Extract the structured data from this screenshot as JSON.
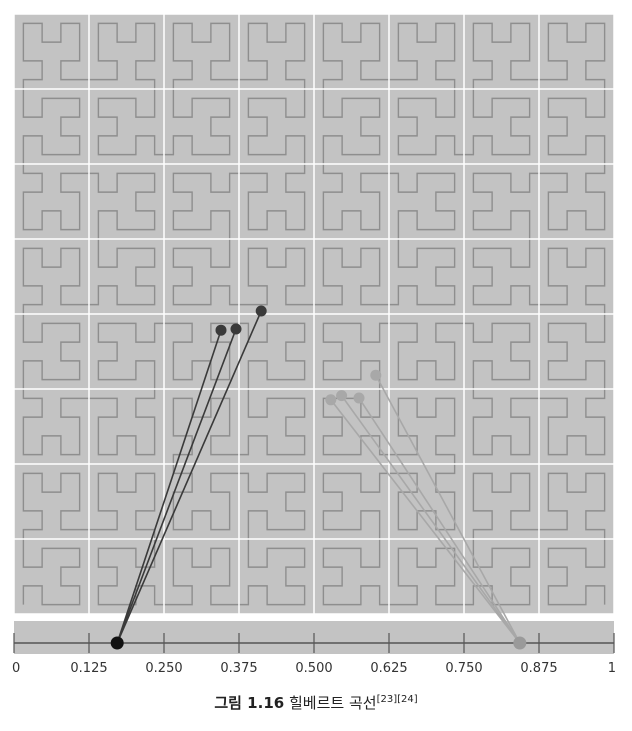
{
  "figure": {
    "grid_subdivisions": 8,
    "hilbert_order": 5,
    "colors": {
      "background": "#c3c3c3",
      "grid": "#ffffff",
      "curve": "#8e8e8e",
      "axis": "#555555",
      "dark_points": "#3a3a3a",
      "light_points": "#a8a8a8",
      "dark_marker": "#111111",
      "light_marker": "#9a9a9a"
    },
    "axis": {
      "min": 0,
      "max": 1,
      "tick_labels": [
        "0",
        "0.125",
        "0.250",
        "0.375",
        "0.500",
        "0.625",
        "0.750",
        "0.875",
        "1"
      ]
    },
    "groups": [
      {
        "marker_t": 0.172,
        "color_key": "dark",
        "points": [
          {
            "u": 0.345,
            "v": 0.527
          },
          {
            "u": 0.37,
            "v": 0.525
          },
          {
            "u": 0.412,
            "v": 0.495
          }
        ]
      },
      {
        "marker_t": 0.843,
        "color_key": "light",
        "points": [
          {
            "u": 0.528,
            "v": 0.643
          },
          {
            "u": 0.546,
            "v": 0.636
          },
          {
            "u": 0.575,
            "v": 0.64
          },
          {
            "u": 0.603,
            "v": 0.602
          }
        ]
      }
    ]
  },
  "caption": {
    "number": "그림 1.16",
    "title": "힐베르트 곡선",
    "refs": "[23][24]"
  }
}
